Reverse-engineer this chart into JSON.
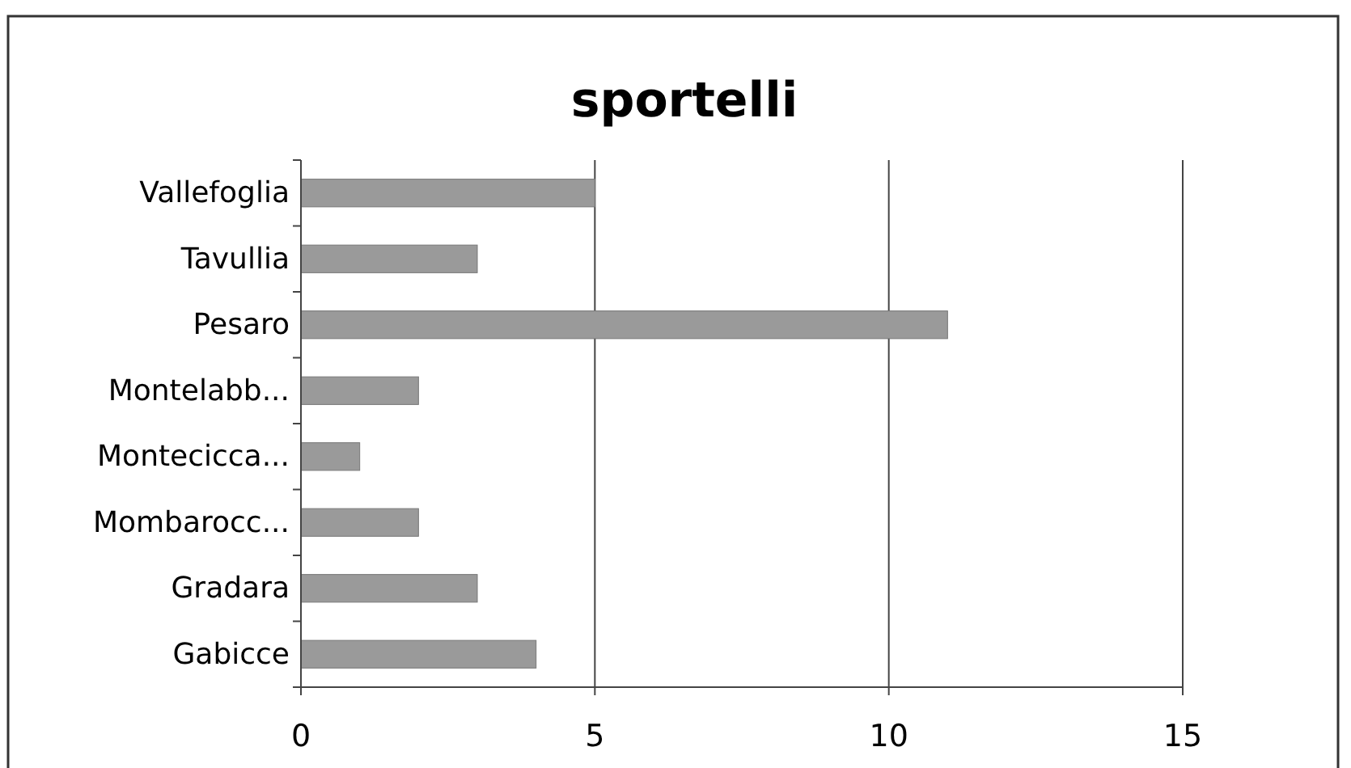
{
  "chart_data": {
    "type": "bar",
    "title": "sportelli",
    "orientation": "horizontal",
    "categories": [
      "Vallefoglia",
      "Tavullia",
      "Pesaro",
      "Montelabb...",
      "Montecicca...",
      "Mombarocc...",
      "Gradara",
      "Gabicce"
    ],
    "values": [
      5,
      3,
      11,
      2,
      1,
      2,
      3,
      4
    ],
    "color": "#9a9a9a",
    "xlim": [
      0,
      15
    ],
    "xticks": [
      0,
      5,
      10,
      15
    ],
    "grid": "x"
  }
}
